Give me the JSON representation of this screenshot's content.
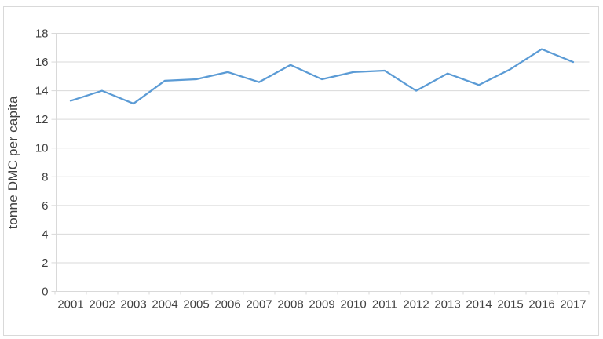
{
  "chart_data": {
    "type": "line",
    "title": "",
    "xlabel": "",
    "ylabel": "tonne DMC per capita",
    "x": [
      "2001",
      "2002",
      "2003",
      "2004",
      "2005",
      "2006",
      "2007",
      "2008",
      "2009",
      "2010",
      "2011",
      "2012",
      "2013",
      "2014",
      "2015",
      "2016",
      "2017"
    ],
    "values": [
      13.3,
      14.0,
      13.1,
      14.7,
      14.8,
      15.3,
      14.6,
      15.8,
      14.8,
      15.3,
      15.4,
      14.0,
      15.2,
      14.4,
      15.5,
      16.9,
      16.0
    ],
    "ylim": [
      0,
      18
    ],
    "ytick_step": 2,
    "grid": "horizontal",
    "legend": "none",
    "colors": {
      "line": "#5B9BD5",
      "grid": "#D9D9D9",
      "axis": "#D9D9D9",
      "text": "#404040",
      "background": "#FFFFFF",
      "border": "#D9D9D9"
    }
  }
}
